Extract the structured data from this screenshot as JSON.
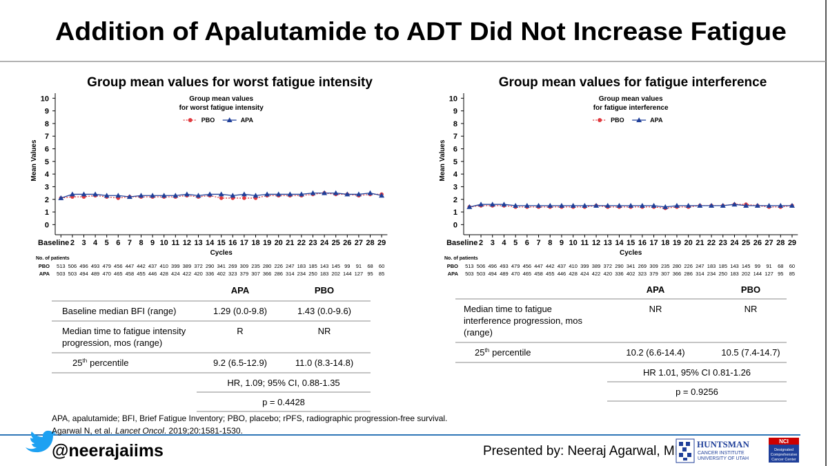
{
  "title": "Addition of Apalutamide to ADT Did Not Increase Fatigue",
  "chart_data": [
    {
      "type": "line",
      "heading": "Group mean values for worst fatigue intensity",
      "title_lines": [
        "Group mean values",
        "for worst fatigue intensity"
      ],
      "categories": [
        "Baseline",
        "2",
        "3",
        "4",
        "5",
        "6",
        "7",
        "8",
        "9",
        "10",
        "11",
        "12",
        "13",
        "14",
        "15",
        "16",
        "17",
        "18",
        "19",
        "20",
        "21",
        "22",
        "23",
        "24",
        "25",
        "26",
        "27",
        "28",
        "29"
      ],
      "series": [
        {
          "name": "PBO",
          "color": "#e0393e",
          "marker": "circle",
          "line": "dotted",
          "values": [
            2.1,
            2.2,
            2.2,
            2.3,
            2.2,
            2.1,
            2.2,
            2.2,
            2.2,
            2.2,
            2.2,
            2.3,
            2.2,
            2.3,
            2.1,
            2.1,
            2.1,
            2.1,
            2.3,
            2.3,
            2.3,
            2.3,
            2.4,
            2.5,
            2.4,
            2.4,
            2.3,
            2.4,
            2.4
          ]
        },
        {
          "name": "APA",
          "color": "#1f3f99",
          "marker": "triangle",
          "line": "solid",
          "values": [
            2.1,
            2.4,
            2.4,
            2.4,
            2.3,
            2.3,
            2.2,
            2.3,
            2.3,
            2.3,
            2.3,
            2.4,
            2.3,
            2.4,
            2.4,
            2.3,
            2.4,
            2.3,
            2.4,
            2.4,
            2.4,
            2.4,
            2.5,
            2.5,
            2.5,
            2.4,
            2.4,
            2.5,
            2.3
          ]
        }
      ],
      "x_label": "Cycles",
      "y_label": "Mean Values",
      "ylim": [
        -0.8,
        10.4
      ],
      "yticks": [
        0,
        1,
        2,
        3,
        4,
        5,
        6,
        7,
        8,
        9,
        10
      ],
      "patients": {
        "label": "No. of patients",
        "rows": [
          {
            "name": "PBO",
            "values": [
              513,
              506,
              496,
              493,
              479,
              456,
              447,
              442,
              437,
              410,
              399,
              389,
              372,
              290,
              341,
              269,
              309,
              235,
              280,
              226,
              247,
              183,
              185,
              143,
              145,
              99,
              91,
              68,
              60
            ]
          },
          {
            "name": "APA",
            "values": [
              503,
              503,
              494,
              489,
              470,
              465,
              458,
              455,
              446,
              428,
              424,
              422,
              420,
              336,
              402,
              323,
              379,
              307,
              366,
              286,
              314,
              234,
              250,
              183,
              202,
              144,
              127,
              95,
              85
            ]
          }
        ]
      }
    },
    {
      "type": "line",
      "heading": "Group mean values for fatigue interference",
      "title_lines": [
        "Group mean values",
        "for fatigue interference"
      ],
      "categories": [
        "Baseline",
        "2",
        "3",
        "4",
        "5",
        "6",
        "7",
        "8",
        "9",
        "10",
        "11",
        "12",
        "13",
        "14",
        "15",
        "16",
        "17",
        "18",
        "19",
        "20",
        "21",
        "22",
        "23",
        "24",
        "25",
        "26",
        "27",
        "28",
        "29"
      ],
      "series": [
        {
          "name": "PBO",
          "color": "#e0393e",
          "marker": "circle",
          "line": "dotted",
          "values": [
            1.4,
            1.5,
            1.5,
            1.5,
            1.4,
            1.4,
            1.4,
            1.4,
            1.4,
            1.4,
            1.4,
            1.5,
            1.4,
            1.4,
            1.4,
            1.4,
            1.4,
            1.3,
            1.4,
            1.4,
            1.5,
            1.5,
            1.5,
            1.6,
            1.6,
            1.5,
            1.4,
            1.4,
            1.5
          ]
        },
        {
          "name": "APA",
          "color": "#1f3f99",
          "marker": "triangle",
          "line": "solid",
          "values": [
            1.4,
            1.6,
            1.6,
            1.6,
            1.5,
            1.5,
            1.5,
            1.5,
            1.5,
            1.5,
            1.5,
            1.5,
            1.5,
            1.5,
            1.5,
            1.5,
            1.5,
            1.4,
            1.5,
            1.5,
            1.5,
            1.5,
            1.5,
            1.6,
            1.5,
            1.5,
            1.5,
            1.5,
            1.5
          ]
        }
      ],
      "x_label": "Cycles",
      "y_label": "Mean Values",
      "ylim": [
        -0.8,
        10.4
      ],
      "yticks": [
        0,
        1,
        2,
        3,
        4,
        5,
        6,
        7,
        8,
        9,
        10
      ],
      "patients": {
        "label": "No. of patients",
        "rows": [
          {
            "name": "PBO",
            "values": [
              513,
              506,
              496,
              493,
              479,
              456,
              447,
              442,
              437,
              410,
              399,
              389,
              372,
              290,
              341,
              269,
              309,
              235,
              280,
              226,
              247,
              183,
              185,
              143,
              145,
              99,
              91,
              68,
              60
            ]
          },
          {
            "name": "APA",
            "values": [
              503,
              503,
              494,
              489,
              470,
              465,
              458,
              455,
              446,
              428,
              424,
              422,
              420,
              336,
              402,
              323,
              379,
              307,
              366,
              286,
              314,
              234,
              250,
              183,
              202,
              144,
              127,
              95,
              85
            ]
          }
        ]
      }
    }
  ],
  "tables": [
    {
      "header": [
        "APA",
        "PBO"
      ],
      "rows": [
        {
          "label": [
            "Baseline median BFI (range)"
          ],
          "cells": [
            "1.29 (0.0-9.8)",
            "1.43 (0.0-9.6)"
          ]
        },
        {
          "label": [
            "Median time to fatigue intensity",
            "progression, mos (range)"
          ],
          "cells": [
            "R",
            "NR"
          ]
        },
        {
          "percentile": [
            "25",
            "th",
            "percentile"
          ],
          "cells": [
            "9.2 (6.5-12.9)",
            "11.0 (8.3-14.8)"
          ]
        }
      ],
      "spans": [
        "HR, 1.09; 95% CI, 0.88-1.35",
        "p = 0.4428"
      ]
    },
    {
      "header": [
        "APA",
        "PBO"
      ],
      "rows": [
        {
          "label": [
            "Median time to fatigue",
            "interference progression, mos",
            "(range)"
          ],
          "cells": [
            "NR",
            "NR"
          ]
        },
        {
          "percentile": [
            "25",
            "th",
            "percentile"
          ],
          "cells": [
            "10.2 (6.6-14.4)",
            "10.5 (7.4-14.7)"
          ]
        }
      ],
      "spans": [
        "HR 1.01, 95% CI 0.81-1.26",
        "p = 0.9256"
      ]
    }
  ],
  "footnote": {
    "abbreviations": "APA, apalutamide; BFI, Brief Fatigue Inventory; PBO, placebo; rPFS, radiographic progression-free survival.",
    "citation": [
      "Agarwal N, et al.",
      "Lancet Oncol",
      ". 2019;20:1581-1530."
    ]
  },
  "footer": {
    "handle": "@neerajaiims",
    "presenter": "Presented by: Neeraj Agarwal, MD",
    "logo": {
      "name": "HUNTSMAN",
      "line2": "CANCER INSTITUTE",
      "line3": "UNIVERSITY OF UTAH",
      "badge": "NCI",
      "badge_lines": [
        "Designated",
        "Comprehensive",
        "Cancer Center"
      ]
    }
  }
}
